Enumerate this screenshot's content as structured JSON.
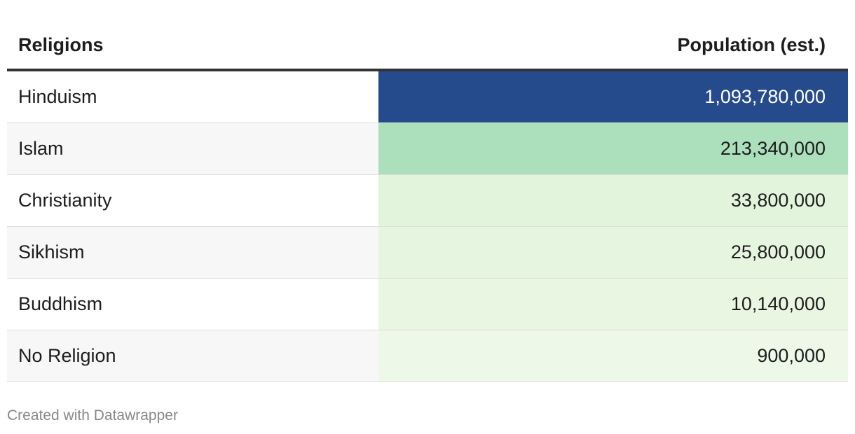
{
  "table": {
    "columns": [
      "Religions",
      "Population (est.)"
    ],
    "rows": [
      [
        "Hinduism",
        "1,093,780,000"
      ],
      [
        "Islam",
        "213,340,000"
      ],
      [
        "Christianity",
        "33,800,000"
      ],
      [
        "Sikhism",
        "25,800,000"
      ],
      [
        "Buddhism",
        "10,140,000"
      ],
      [
        "No Religion",
        "900,000"
      ]
    ],
    "cell_colors": [
      "#264b8c",
      "#acdfbc",
      "#e3f4dd",
      "#e6f5df",
      "#e9f6e2",
      "#eef8e8"
    ],
    "cell_text_colors": [
      "#ffffff",
      "#1d1d1d",
      "#1d1d1d",
      "#1d1d1d",
      "#1d1d1d",
      "#1d1d1d"
    ]
  },
  "footer": {
    "credit": "Created with Datawrapper"
  }
}
